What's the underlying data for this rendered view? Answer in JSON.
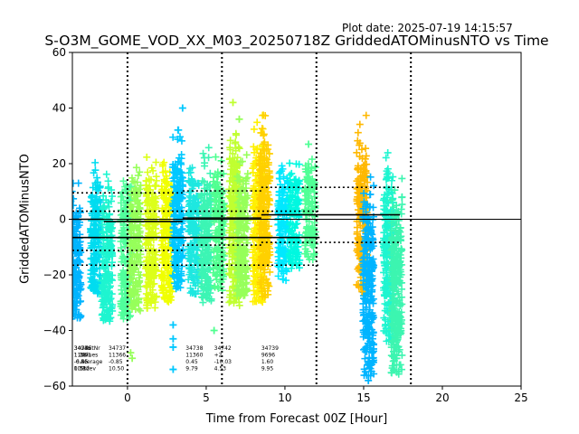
{
  "plot_date": "Plot date: 2025-07-19 14:15:57",
  "chart_data": {
    "type": "scatter",
    "title": "S-O3M_GOME_VOD_XX_M03_20250718Z GriddedATOMinusNTO vs Time",
    "xlabel": "Time from Forecast 00Z [Hour]",
    "ylabel": "GriddedATOMinusNTO",
    "xlim": [
      -3.5,
      25
    ],
    "ylim": [
      -60,
      60
    ],
    "xticks": [
      0,
      5,
      10,
      15,
      20,
      25
    ],
    "yticks": [
      -60,
      -40,
      -20,
      0,
      20,
      40,
      60
    ],
    "grid": false,
    "vlines_dotted": [
      0,
      6,
      12,
      18
    ],
    "zero_line": 0,
    "marker": "+",
    "clusters": [
      {
        "x": -3.3,
        "ymin": -36,
        "ymax": 20,
        "color": "#00b4ff"
      },
      {
        "x": -2.0,
        "ymin": -27,
        "ymax": 25,
        "color": "#00dcf0"
      },
      {
        "x": -1.3,
        "ymin": -37,
        "ymax": 22,
        "color": "#1ef5d0"
      },
      {
        "x": -0.1,
        "ymin": -36,
        "ymax": 24,
        "color": "#50ff9c"
      },
      {
        "x": 0.5,
        "ymin": -33,
        "ymax": 23,
        "color": "#96ff5a"
      },
      {
        "x": 1.5,
        "ymin": -32,
        "ymax": 30,
        "color": "#dcff1a"
      },
      {
        "x": 2.5,
        "ymin": -30,
        "ymax": 28,
        "color": "#f0ff00"
      },
      {
        "x": 3.2,
        "ymin": -25,
        "ymax": 39,
        "color": "#00c8ff"
      },
      {
        "x": 4.2,
        "ymin": -27,
        "ymax": 28,
        "color": "#1ee8e0"
      },
      {
        "x": 5.0,
        "ymin": -30,
        "ymax": 30,
        "color": "#3cf5b4"
      },
      {
        "x": 5.8,
        "ymin": -26,
        "ymax": 27,
        "color": "#50ff90"
      },
      {
        "x": 6.8,
        "ymin": -32,
        "ymax": 42,
        "color": "#c0ff30"
      },
      {
        "x": 7.3,
        "ymin": -28,
        "ymax": 30,
        "color": "#96ff5a"
      },
      {
        "x": 8.3,
        "ymin": -30,
        "ymax": 40,
        "color": "#fff000"
      },
      {
        "x": 8.7,
        "ymin": -28,
        "ymax": 44,
        "color": "#ffd000"
      },
      {
        "x": 9.9,
        "ymin": -22,
        "ymax": 27,
        "color": "#00e8ff"
      },
      {
        "x": 10.6,
        "ymin": -18,
        "ymax": 25,
        "color": "#00f8e0"
      },
      {
        "x": 11.6,
        "ymin": -15,
        "ymax": 27,
        "color": "#50ff96"
      },
      {
        "x": 14.9,
        "ymin": -25,
        "ymax": 40,
        "color": "#ffb800"
      },
      {
        "x": 15.3,
        "ymin": -58,
        "ymax": 22,
        "color": "#00b4ff"
      },
      {
        "x": 16.6,
        "ymin": -44,
        "ymax": 31,
        "color": "#1ef5d0"
      },
      {
        "x": 17.1,
        "ymin": -56,
        "ymax": 22,
        "color": "#3cf5b0"
      }
    ],
    "mean_segments": [
      {
        "x1": -3.5,
        "x2": 12.2,
        "y": -6.55
      },
      {
        "x1": -3.5,
        "x2": -1.5,
        "y": 0
      },
      {
        "x1": -1.5,
        "x2": 3.5,
        "y": -0.8
      },
      {
        "x1": 3.5,
        "x2": 8.5,
        "y": 0.45
      },
      {
        "x1": 8.5,
        "x2": 17.3,
        "y": 1.6
      }
    ],
    "std_segments": [
      {
        "x1": -3.5,
        "x2": 3.5,
        "y": 9.5
      },
      {
        "x1": -3.5,
        "x2": 3.5,
        "y": -11.2
      },
      {
        "x1": 3.5,
        "x2": 8.5,
        "y": 10.2
      },
      {
        "x1": 3.5,
        "x2": 8.5,
        "y": -9.3
      },
      {
        "x1": 8.5,
        "x2": 17.3,
        "y": 11.5
      },
      {
        "x1": 8.5,
        "x2": 17.3,
        "y": -8.3
      },
      {
        "x1": -3.5,
        "x2": 12.2,
        "y": 2.9
      },
      {
        "x1": -3.5,
        "x2": 12.2,
        "y": -16.5
      }
    ],
    "annotations": [
      {
        "x": -3.4,
        "lines": [
          "34736",
          "11301",
          "-6.55",
          "10.12"
        ]
      },
      {
        "x": -3.4,
        "lines": [
          "34746",
          "1 28",
          "-0.35",
          "0.38"
        ]
      },
      {
        "x": -3.0,
        "lines": [
          "OrbitNr",
          "Values",
          "Average",
          "Stdev"
        ]
      },
      {
        "x": -1.2,
        "lines": [
          "34737",
          "11366",
          "-0.85",
          "10.50"
        ]
      },
      {
        "x": 3.7,
        "lines": [
          "34738",
          "11360",
          "0.45",
          "9.79"
        ]
      },
      {
        "x": 5.5,
        "lines": [
          "34742",
          "+2",
          "-10.03",
          "4.53"
        ]
      },
      {
        "x": 8.5,
        "lines": [
          "34739",
          "9696",
          "1.60",
          "9.95"
        ]
      }
    ],
    "outliers": [
      {
        "x": 0.2,
        "y": -48
      },
      {
        "x": 0.3,
        "y": -50
      },
      {
        "x": 2.9,
        "y": -38
      },
      {
        "x": 2.9,
        "y": -43
      },
      {
        "x": 2.9,
        "y": -46
      },
      {
        "x": 2.9,
        "y": -54
      },
      {
        "x": 3.5,
        "y": 40
      },
      {
        "x": 5.5,
        "y": -40
      },
      {
        "x": 6.7,
        "y": 42
      },
      {
        "x": 7.1,
        "y": 36
      },
      {
        "x": 14.9,
        "y": -26
      },
      {
        "x": 15.3,
        "y": -58
      },
      {
        "x": 15.3,
        "y": -52
      },
      {
        "x": 17.1,
        "y": -55
      },
      {
        "x": 17.1,
        "y": -50
      },
      {
        "x": 11.5,
        "y": 27
      }
    ]
  }
}
